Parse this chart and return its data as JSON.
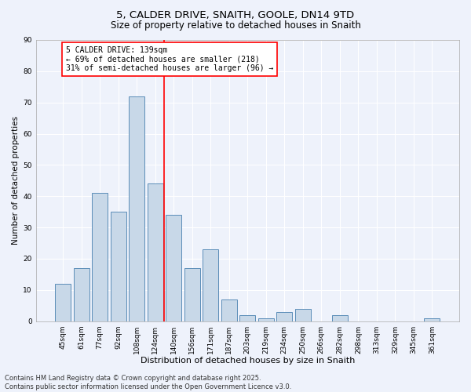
{
  "title1": "5, CALDER DRIVE, SNAITH, GOOLE, DN14 9TD",
  "title2": "Size of property relative to detached houses in Snaith",
  "xlabel": "Distribution of detached houses by size in Snaith",
  "ylabel": "Number of detached properties",
  "categories": [
    "45sqm",
    "61sqm",
    "77sqm",
    "92sqm",
    "108sqm",
    "124sqm",
    "140sqm",
    "156sqm",
    "171sqm",
    "187sqm",
    "203sqm",
    "219sqm",
    "234sqm",
    "250sqm",
    "266sqm",
    "282sqm",
    "298sqm",
    "313sqm",
    "329sqm",
    "345sqm",
    "361sqm"
  ],
  "values": [
    12,
    17,
    41,
    35,
    72,
    44,
    34,
    17,
    23,
    7,
    2,
    1,
    3,
    4,
    0,
    2,
    0,
    0,
    0,
    0,
    1
  ],
  "bar_color": "#c8d8e8",
  "bar_edge_color": "#5b8db8",
  "vline_x_index": 5.5,
  "vline_color": "red",
  "annotation_line1": "5 CALDER DRIVE: 139sqm",
  "annotation_line2": "← 69% of detached houses are smaller (218)",
  "annotation_line3": "31% of semi-detached houses are larger (96) →",
  "annotation_box_color": "white",
  "annotation_box_edge_color": "red",
  "ylim": [
    0,
    90
  ],
  "yticks": [
    0,
    10,
    20,
    30,
    40,
    50,
    60,
    70,
    80,
    90
  ],
  "background_color": "#eef2fb",
  "grid_color": "white",
  "footer": "Contains HM Land Registry data © Crown copyright and database right 2025.\nContains public sector information licensed under the Open Government Licence v3.0.",
  "title1_fontsize": 9.5,
  "title2_fontsize": 8.5,
  "xlabel_fontsize": 8,
  "ylabel_fontsize": 7.5,
  "tick_fontsize": 6.5,
  "annotation_fontsize": 7,
  "footer_fontsize": 6
}
